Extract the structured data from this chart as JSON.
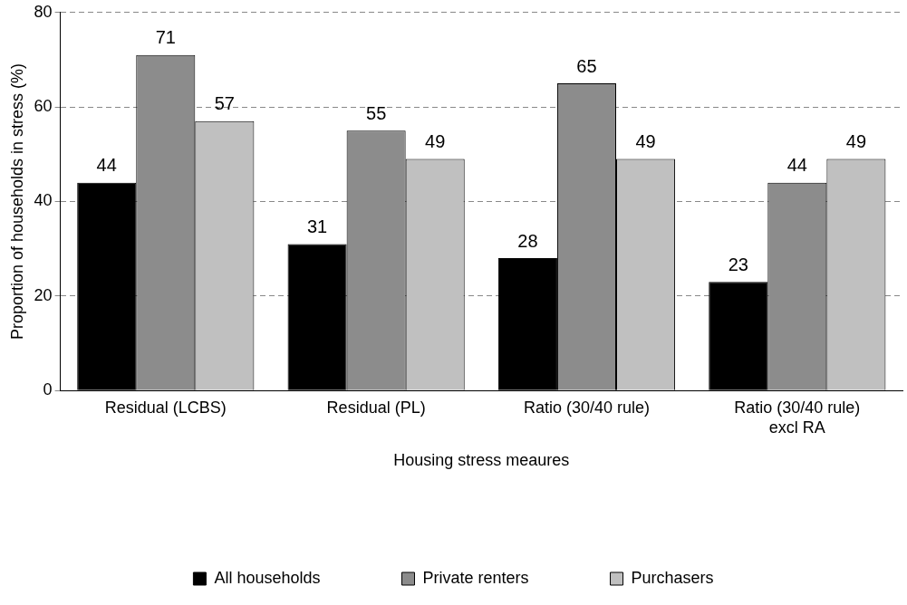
{
  "chart_data": {
    "type": "bar",
    "xlabel": "Housing stress meaures",
    "ylabel": "Proportion of households in stress (%)",
    "categories": [
      "Residual (LCBS)",
      "Residual (PL)",
      "Ratio (30/40 rule)",
      "Ratio (30/40 rule) excl RA"
    ],
    "series": [
      {
        "name": "All households",
        "color": "#000000",
        "values": [
          44,
          31,
          28,
          23
        ]
      },
      {
        "name": "Private renters",
        "color": "#8c8c8c",
        "values": [
          71,
          55,
          65,
          44
        ]
      },
      {
        "name": "Purchasers",
        "color": "#c0c0c0",
        "values": [
          57,
          49,
          49,
          49
        ]
      }
    ],
    "ylim": [
      0,
      80
    ],
    "yticks": [
      0,
      20,
      40,
      60,
      80
    ],
    "grid": "y",
    "legend": "bottom",
    "data_labels": true
  }
}
